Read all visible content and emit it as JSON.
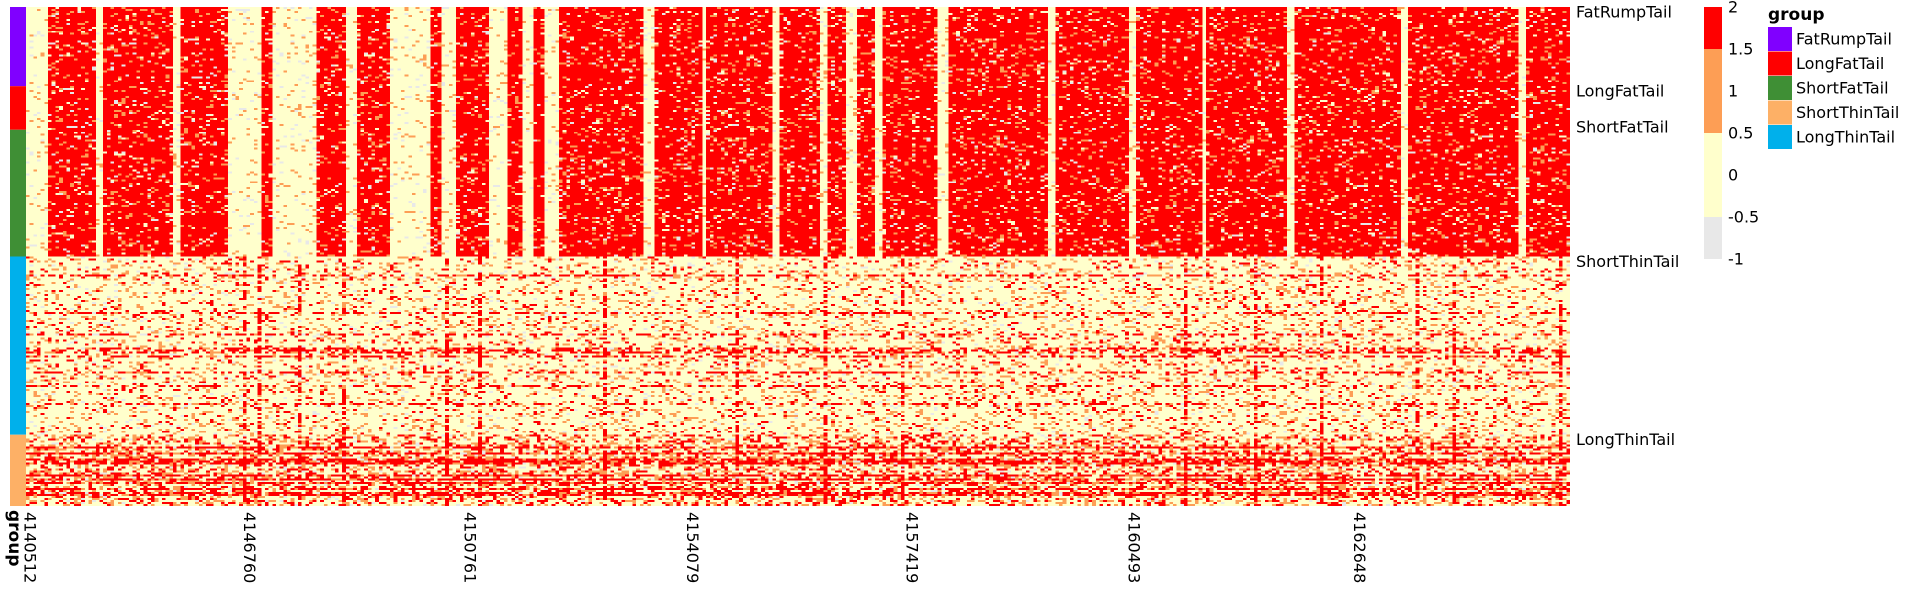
{
  "chart_data": {
    "type": "heatmap",
    "title": "",
    "xlabel": "",
    "ylabel": "",
    "x_ticks": [
      "4140512",
      "4146760",
      "4150761",
      "4154079",
      "4157419",
      "4160493",
      "4162648"
    ],
    "annotation_axis_label": "group",
    "row_groups": [
      {
        "name": "FatRumpTail",
        "rows": 40
      },
      {
        "name": "LongFatTail",
        "rows": 22
      },
      {
        "name": "ShortFatTail",
        "rows": 64
      },
      {
        "name": "LongThinTail",
        "rows": 90
      },
      {
        "name": "ShortThinTail",
        "rows": 36
      }
    ],
    "row_labels": [
      "FatRumpTail",
      "LongFatTail",
      "ShortFatTail",
      "ShortThinTail",
      "LongThinTail"
    ],
    "value_scale": {
      "range": [
        -1,
        2
      ],
      "ticks": [
        "2",
        "1.5",
        "1",
        "0.5",
        "0",
        "-0.5",
        "-1"
      ],
      "bins": [
        {
          "from": -1,
          "to": -0.5,
          "color": "#e8e8e8"
        },
        {
          "from": -0.5,
          "to": 0.5,
          "color": "#ffffcc"
        },
        {
          "from": 0.5,
          "to": 1.5,
          "color": "#fd9e55"
        },
        {
          "from": 1.5,
          "to": 2,
          "color": "#ff0000"
        }
      ]
    },
    "legend": {
      "title": "group",
      "entries": [
        {
          "label": "FatRumpTail",
          "color": "#8000ff"
        },
        {
          "label": "LongFatTail",
          "color": "#ff0000"
        },
        {
          "label": "ShortFatTail",
          "color": "#3f8f35"
        },
        {
          "label": "ShortThinTail",
          "color": "#fdb066"
        },
        {
          "label": "LongThinTail",
          "color": "#00b0eb"
        }
      ]
    },
    "group_order": [
      "FatRumpTail",
      "LongFatTail",
      "ShortFatTail",
      "LongThinTail",
      "ShortThinTail"
    ],
    "columns_approx": 420,
    "pattern": {
      "upper_block_rows": [
        "FatRumpTail",
        "LongFatTail",
        "ShortFatTail"
      ],
      "upper_block_dominant_value": 2,
      "lower_block_rows": [
        "LongThinTail",
        "ShortThinTail"
      ],
      "lower_block_dominant_value": 0,
      "enriched_band_group": "ShortThinTail",
      "low_value_column_ranges": [
        [
          0.0,
          0.012
        ],
        [
          0.044,
          0.048
        ],
        [
          0.093,
          0.099
        ],
        [
          0.13,
          0.15
        ],
        [
          0.158,
          0.187
        ],
        [
          0.205,
          0.214
        ],
        [
          0.235,
          0.26
        ],
        [
          0.268,
          0.278
        ],
        [
          0.3,
          0.31
        ],
        [
          0.32,
          0.327
        ],
        [
          0.335,
          0.345
        ],
        [
          0.399,
          0.405
        ],
        [
          0.437,
          0.44
        ],
        [
          0.482,
          0.486
        ],
        [
          0.514,
          0.519
        ],
        [
          0.53,
          0.536
        ],
        [
          0.548,
          0.553
        ],
        [
          0.59,
          0.596
        ],
        [
          0.66,
          0.665
        ],
        [
          0.712,
          0.717
        ],
        [
          0.76,
          0.764
        ],
        [
          0.815,
          0.82
        ],
        [
          0.89,
          0.895
        ],
        [
          0.965,
          0.97
        ]
      ]
    }
  }
}
